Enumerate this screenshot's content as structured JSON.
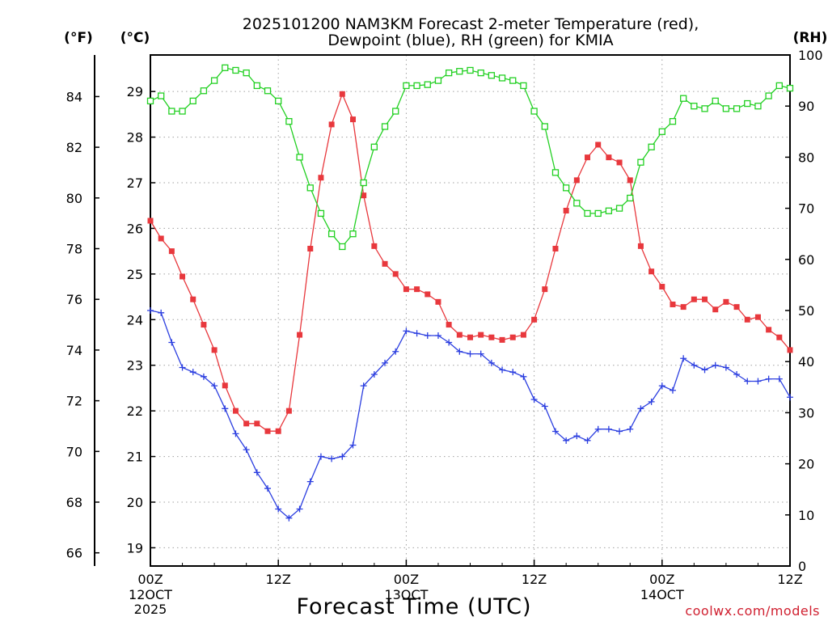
{
  "chart_data": {
    "type": "line",
    "title_line1": "2025101200 NAM3KM Forecast 2-meter Temperature (red),",
    "title_line2": "Dewpoint (blue), RH (green) for KMIA",
    "xlabel": "Forecast Time (UTC)",
    "watermark": "coolwx.com/models",
    "units": {
      "f": "(°F)",
      "c": "(°C)",
      "rh": "(RH)"
    },
    "x_range_hours": [
      0,
      60
    ],
    "x_ticks": [
      {
        "hour": 0,
        "line1": "00Z",
        "line2": "12OCT",
        "line3": "2025"
      },
      {
        "hour": 12,
        "line1": "12Z",
        "line2": "",
        "line3": ""
      },
      {
        "hour": 24,
        "line1": "00Z",
        "line2": "13OCT",
        "line3": ""
      },
      {
        "hour": 36,
        "line1": "12Z",
        "line2": "",
        "line3": ""
      },
      {
        "hour": 48,
        "line1": "00Z",
        "line2": "14OCT",
        "line3": ""
      },
      {
        "hour": 60,
        "line1": "12Z",
        "line2": "",
        "line3": ""
      }
    ],
    "celsius_axis": {
      "range": [
        18.6,
        29.8
      ],
      "ticks": [
        "19",
        "20",
        "21",
        "22",
        "23",
        "24",
        "25",
        "26",
        "27",
        "28",
        "29"
      ]
    },
    "fahrenheit_axis": {
      "range": [
        65.48,
        85.64
      ],
      "ticks": [
        "66",
        "68",
        "70",
        "72",
        "74",
        "76",
        "78",
        "80",
        "82",
        "84"
      ]
    },
    "rh_axis": {
      "range": [
        0,
        100
      ],
      "ticks": [
        "0",
        "10",
        "20",
        "30",
        "40",
        "50",
        "60",
        "70",
        "80",
        "90",
        "100"
      ]
    },
    "colors": {
      "temperature": "#e8383d",
      "dewpoint": "#2c3fe0",
      "rh": "#22d022",
      "grid": "#a0a0a0",
      "watermark": "#d02030"
    },
    "series": [
      {
        "name": "Temperature",
        "unit": "°F",
        "axis": "fahrenheit",
        "marker": "filled-square",
        "start_hour": 0,
        "values": [
          79.1,
          78.4,
          77.9,
          76.9,
          76.0,
          75.0,
          74.0,
          72.6,
          71.6,
          71.1,
          71.1,
          70.8,
          70.8,
          71.6,
          74.6,
          78.0,
          80.8,
          82.9,
          84.1,
          83.1,
          80.1,
          78.1,
          77.4,
          77.0,
          76.4,
          76.4,
          76.2,
          75.9,
          75.0,
          74.6,
          74.5,
          74.6,
          74.5,
          74.4,
          74.5,
          74.6,
          75.2,
          76.4,
          78.0,
          79.5,
          80.7,
          81.6,
          82.1,
          81.6,
          81.4,
          80.7,
          78.1,
          77.1,
          76.5,
          75.8,
          75.7,
          76.0,
          76.0,
          75.6,
          75.9,
          75.7,
          75.2,
          75.3,
          74.8,
          74.5,
          74.0
        ]
      },
      {
        "name": "Dewpoint",
        "unit": "°C",
        "axis": "celsius",
        "marker": "plus",
        "start_hour": 0,
        "values": [
          24.2,
          24.15,
          23.5,
          22.95,
          22.85,
          22.75,
          22.55,
          22.05,
          21.5,
          21.15,
          20.65,
          20.3,
          19.85,
          19.65,
          19.85,
          20.45,
          21.0,
          20.95,
          21.0,
          21.25,
          22.55,
          22.8,
          23.05,
          23.3,
          23.75,
          23.7,
          23.65,
          23.65,
          23.5,
          23.3,
          23.25,
          23.25,
          23.05,
          22.9,
          22.85,
          22.75,
          22.25,
          22.1,
          21.55,
          21.35,
          21.45,
          21.35,
          21.6,
          21.6,
          21.55,
          21.6,
          22.05,
          22.2,
          22.55,
          22.45,
          23.15,
          23.0,
          22.9,
          23.0,
          22.95,
          22.8,
          22.65,
          22.65,
          22.7,
          22.7,
          22.3
        ]
      },
      {
        "name": "RH",
        "unit": "%",
        "axis": "rh",
        "marker": "open-square",
        "start_hour": 0,
        "values": [
          91,
          92,
          89,
          89,
          91,
          93,
          95,
          97.5,
          97,
          96.5,
          94,
          93,
          91,
          87,
          80,
          74,
          69,
          65,
          62.5,
          65,
          75,
          82,
          86,
          89,
          94,
          94,
          94.2,
          95,
          96.5,
          96.8,
          97,
          96.5,
          96,
          95.5,
          95,
          94,
          89,
          86,
          77,
          74,
          71,
          69,
          69,
          69.5,
          70,
          72,
          79,
          82,
          85,
          87,
          91.5,
          90,
          89.5,
          91,
          89.5,
          89.5,
          90.5,
          90,
          92,
          94,
          93.5
        ]
      }
    ]
  }
}
